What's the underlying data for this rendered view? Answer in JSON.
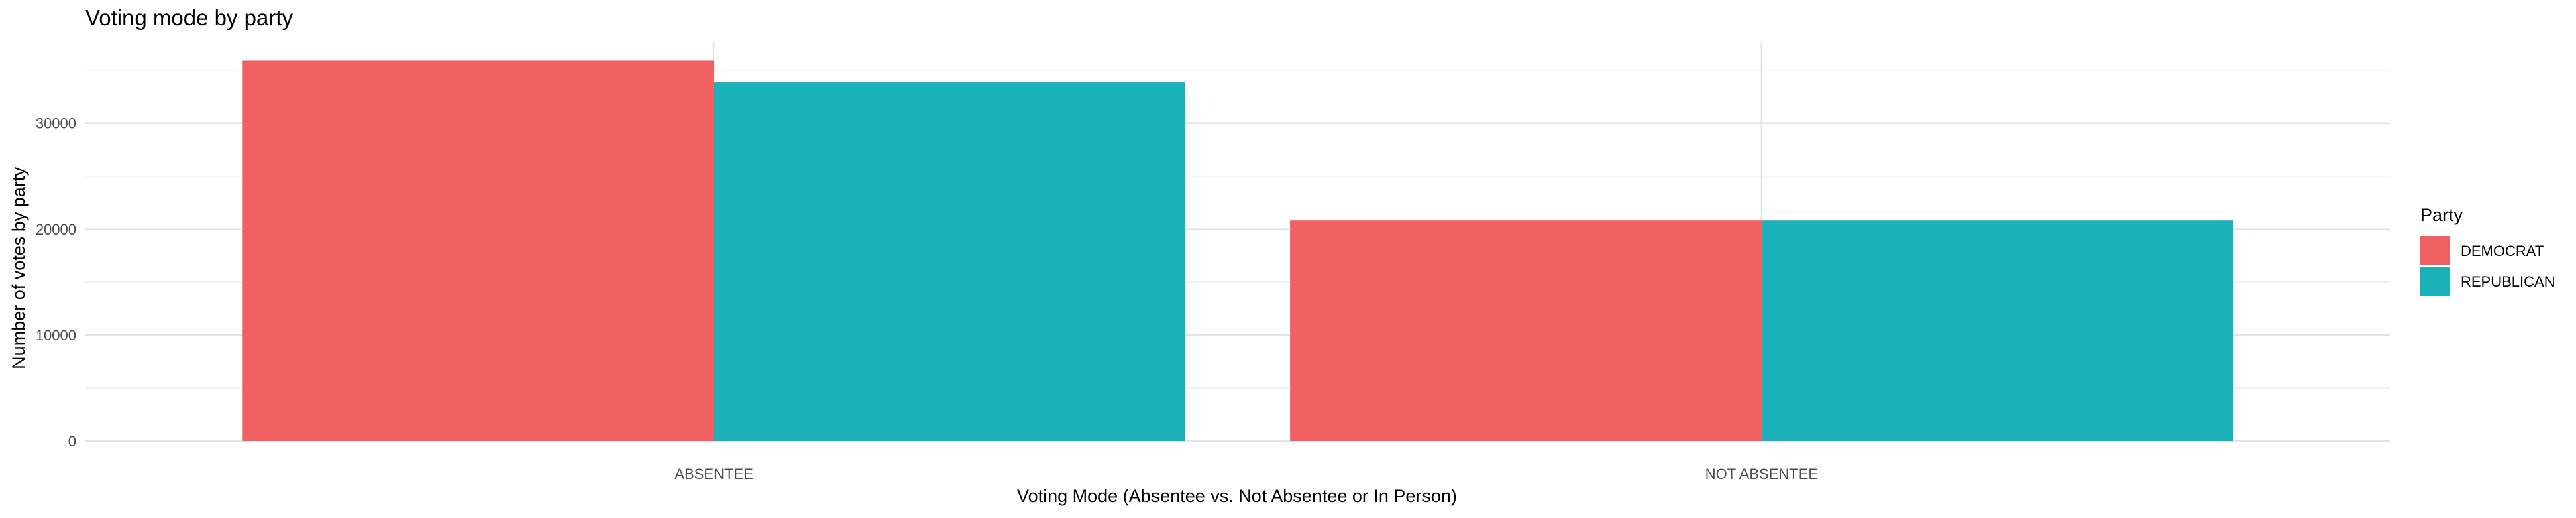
{
  "chart_data": {
    "type": "bar",
    "title": "Voting mode by party",
    "xlabel": "Voting Mode (Absentee vs. Not Absentee or In Person)",
    "ylabel": "Number of votes by party",
    "categories": [
      "ABSENTEE",
      "NOT ABSENTEE"
    ],
    "series": [
      {
        "name": "DEMOCRAT",
        "color": "#F26161",
        "values": [
          35900,
          20800
        ]
      },
      {
        "name": "REPUBLICAN",
        "color": "#1AB2B8",
        "values": [
          33900,
          20800
        ]
      }
    ],
    "ylim": [
      0,
      37700
    ],
    "yticks": [
      0,
      10000,
      20000,
      30000
    ],
    "ytick_labels": [
      "0",
      "10000",
      "20000",
      "30000"
    ],
    "grid": true,
    "legend": {
      "title": "Party",
      "position": "right"
    }
  }
}
